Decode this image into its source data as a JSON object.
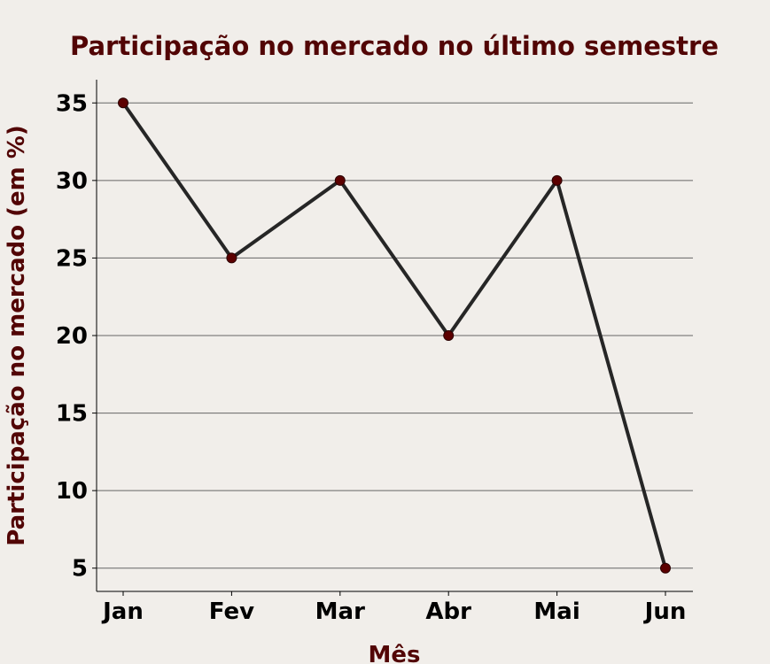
{
  "colors": {
    "background": "#f1eeea",
    "title": "#520505",
    "axis_label": "#520505",
    "line": "#262626",
    "marker": "#5c0000",
    "grid": "#666666",
    "axis": "#000000"
  },
  "chart_data": {
    "type": "line",
    "title": "Participação no mercado no último semestre",
    "xlabel": "Mês",
    "ylabel": "Participação no mercado (em %)",
    "categories": [
      "Jan",
      "Fev",
      "Mar",
      "Abr",
      "Mai",
      "Jun"
    ],
    "series": [
      {
        "name": "Participação no mercado",
        "values": [
          35,
          25,
          30,
          20,
          30,
          5
        ]
      }
    ],
    "ylim": [
      3.5,
      36.5
    ],
    "yticks": [
      5,
      10,
      15,
      20,
      25,
      30,
      35
    ],
    "grid": true,
    "grid_axis": "y",
    "markers": true
  }
}
